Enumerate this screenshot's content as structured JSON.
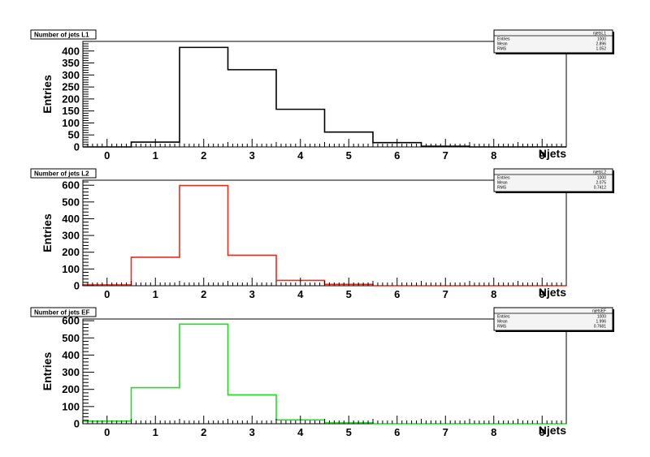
{
  "chart_data": [
    {
      "type": "histogram",
      "title": "Number of jets L1",
      "xlabel": "Njets",
      "ylabel": "Entries",
      "xlim": [
        -0.5,
        9.5
      ],
      "ylim": [
        0,
        440
      ],
      "yticks": [
        0,
        50,
        100,
        150,
        200,
        250,
        300,
        350,
        400
      ],
      "xticks": [
        0,
        1,
        2,
        3,
        4,
        5,
        6,
        7,
        8,
        9
      ],
      "bin_edges": [
        -0.5,
        0.5,
        1.5,
        2.5,
        3.5,
        4.5,
        5.5,
        6.5,
        7.5,
        8.5,
        9.5
      ],
      "values": [
        0,
        20,
        415,
        322,
        157,
        62,
        18,
        3,
        0,
        0
      ],
      "color": "#000000",
      "stats": {
        "name": "njetsL1",
        "entries_label": "Entries",
        "entries": "1000",
        "mean_label": "Mean",
        "mean": "2.896",
        "rms_label": "RMS",
        "rms": "1.052"
      }
    },
    {
      "type": "histogram",
      "title": "Number of jets L2",
      "xlabel": "Njets",
      "ylabel": "Entries",
      "xlim": [
        -0.5,
        9.5
      ],
      "ylim": [
        0,
        630
      ],
      "yticks": [
        0,
        100,
        200,
        300,
        400,
        500,
        600
      ],
      "xticks": [
        0,
        1,
        2,
        3,
        4,
        5,
        6,
        7,
        8,
        9
      ],
      "bin_edges": [
        -0.5,
        0.5,
        1.5,
        2.5,
        3.5,
        4.5,
        5.5,
        6.5,
        7.5,
        8.5,
        9.5
      ],
      "values": [
        5,
        170,
        598,
        182,
        32,
        8,
        0,
        0,
        0,
        0
      ],
      "color": "#e03020",
      "stats": {
        "name": "njetsL2",
        "entries_label": "Entries",
        "entries": "1000",
        "mean_label": "Mean",
        "mean": "2.075",
        "rms_label": "RMS",
        "rms": "0.7412"
      }
    },
    {
      "type": "histogram",
      "title": "Number of jets EF",
      "xlabel": "Njets",
      "ylabel": "Entries",
      "xlim": [
        -0.5,
        9.5
      ],
      "ylim": [
        0,
        610
      ],
      "yticks": [
        0,
        100,
        200,
        300,
        400,
        500,
        600
      ],
      "xticks": [
        0,
        1,
        2,
        3,
        4,
        5,
        6,
        7,
        8,
        9
      ],
      "bin_edges": [
        -0.5,
        0.5,
        1.5,
        2.5,
        3.5,
        4.5,
        5.5,
        6.5,
        7.5,
        8.5,
        9.5
      ],
      "values": [
        15,
        210,
        580,
        168,
        22,
        5,
        0,
        0,
        0,
        0
      ],
      "color": "#22dd22",
      "stats": {
        "name": "njetsEF",
        "entries_label": "Entries",
        "entries": "1000",
        "mean_label": "Mean",
        "mean": "1.996",
        "rms_label": "RMS",
        "rms": "0.7681"
      }
    }
  ]
}
